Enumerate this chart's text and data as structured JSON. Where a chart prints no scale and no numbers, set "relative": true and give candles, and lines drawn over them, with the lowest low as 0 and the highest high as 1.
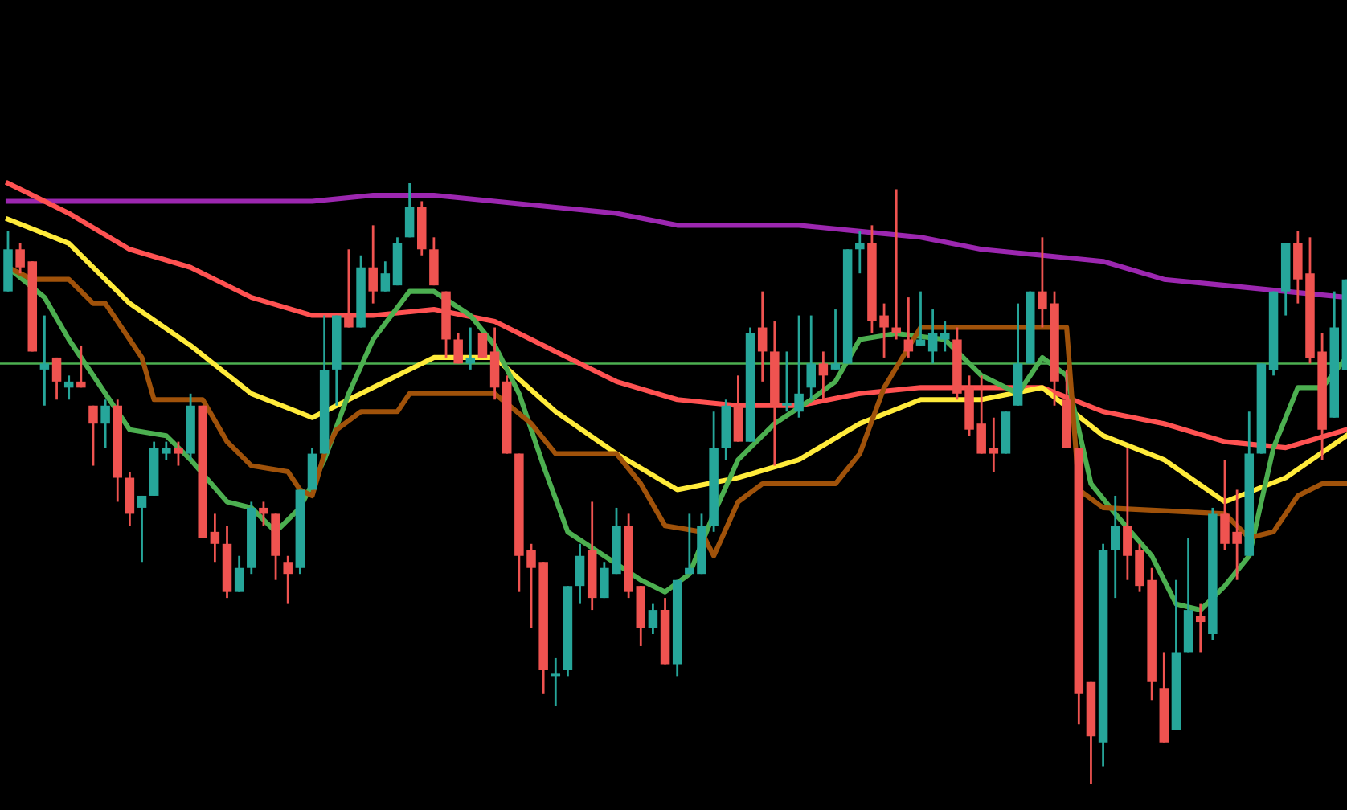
{
  "chart_data": {
    "type": "candlestick",
    "relative": true,
    "colors": [
      "#26a69a",
      "#ef5350",
      "#ef5350",
      "#26a69a",
      "#ef5350",
      "#26a69a",
      "#ef5350",
      "#ef5350",
      "#26a69a",
      "#ef5350",
      "#ef5350",
      "#26a69a",
      "#26a69a",
      "#26a69a",
      "#ef5350",
      "#26a69a",
      "#ef5350",
      "#ef5350",
      "#ef5350",
      "#26a69a",
      "#26a69a",
      "#ef5350",
      "#ef5350",
      "#ef5350",
      "#26a69a",
      "#26a69a",
      "#26a69a",
      "#26a69a",
      "#ef5350",
      "#26a69a",
      "#ef5350",
      "#26a69a",
      "#26a69a",
      "#26a69a",
      "#ef5350",
      "#ef5350",
      "#ef5350",
      "#ef5350",
      "#26a69a",
      "#ef5350",
      "#ef5350",
      "#ef5350",
      "#ef5350",
      "#ef5350",
      "#ef5350",
      "#26a69a",
      "#26a69a",
      "#26a69a",
      "#ef5350",
      "#26a69a",
      "#26a69a",
      "#ef5350",
      "#ef5350",
      "#26a69a",
      "#ef5350",
      "#26a69a",
      "#26a69a",
      "#26a69a",
      "#26a69a",
      "#26a69a",
      "#ef5350",
      "#26a69a",
      "#ef5350",
      "#ef5350",
      "#26a69a",
      "#26a69a",
      "#26a69a",
      "#ef5350",
      "#26a69a",
      "#26a69a",
      "#26a69a",
      "#ef5350",
      "#ef5350",
      "#ef5350",
      "#ef5350",
      "#26a69a",
      "#26a69a",
      "#26a69a",
      "#ef5350",
      "#ef5350",
      "#ef5350",
      "#ef5350",
      "#26a69a",
      "#26a69a",
      "#26a69a",
      "#ef5350",
      "#ef5350",
      "#ef5350",
      "#ef5350",
      "#ef5350",
      "#26a69a",
      "#26a69a",
      "#ef5350",
      "#ef5350",
      "#ef5350",
      "#ef5350",
      "#26a69a",
      "#26a69a",
      "#ef5350",
      "#26a69a",
      "#ef5350",
      "#ef5350",
      "#26a69a",
      "#26a69a",
      "#26a69a",
      "#26a69a",
      "#ef5350",
      "#ef5350",
      "#ef5350",
      "#26a69a",
      "#26a69a"
    ],
    "categories": [
      null,
      null,
      null,
      null,
      null,
      null,
      null,
      null,
      null,
      null,
      null,
      null,
      null,
      null,
      null,
      null,
      null,
      null,
      null,
      null,
      null,
      null,
      null,
      null,
      null,
      null,
      null,
      null,
      null,
      null,
      null,
      null,
      null,
      null,
      null,
      null,
      null,
      null,
      null,
      null,
      null,
      null,
      null,
      null,
      null,
      null,
      null,
      null,
      null,
      null,
      null,
      null,
      null,
      null,
      null,
      null,
      null,
      null,
      null,
      null,
      null,
      null,
      null,
      null,
      null,
      null,
      null,
      null,
      null,
      null,
      null,
      null,
      null,
      null,
      null,
      null,
      null,
      null,
      null,
      null,
      null,
      null,
      null,
      null,
      null,
      null,
      null,
      null,
      null,
      null,
      null,
      null,
      null,
      null,
      null,
      null,
      null,
      null,
      null,
      null,
      null,
      null,
      null,
      null,
      null,
      null,
      null,
      null,
      null,
      null,
      null
    ],
    "ohlc": [
      [
        0.82,
        0.92,
        0.82,
        0.89
      ],
      [
        0.89,
        0.9,
        0.85,
        0.86
      ],
      [
        0.87,
        0.87,
        0.72,
        0.72
      ],
      [
        0.69,
        0.78,
        0.63,
        0.7
      ],
      [
        0.71,
        0.71,
        0.64,
        0.67
      ],
      [
        0.66,
        0.68,
        0.64,
        0.67
      ],
      [
        0.67,
        0.73,
        0.66,
        0.66
      ],
      [
        0.63,
        0.63,
        0.53,
        0.6
      ],
      [
        0.6,
        0.64,
        0.56,
        0.63
      ],
      [
        0.63,
        0.64,
        0.47,
        0.51
      ],
      [
        0.51,
        0.52,
        0.43,
        0.45
      ],
      [
        0.46,
        0.48,
        0.37,
        0.48
      ],
      [
        0.48,
        0.57,
        0.48,
        0.56
      ],
      [
        0.55,
        0.57,
        0.54,
        0.56
      ],
      [
        0.56,
        0.57,
        0.53,
        0.55
      ],
      [
        0.55,
        0.65,
        0.54,
        0.63
      ],
      [
        0.63,
        0.63,
        0.41,
        0.41
      ],
      [
        0.42,
        0.45,
        0.37,
        0.4
      ],
      [
        0.4,
        0.43,
        0.31,
        0.32
      ],
      [
        0.32,
        0.38,
        0.32,
        0.36
      ],
      [
        0.36,
        0.47,
        0.35,
        0.46
      ],
      [
        0.46,
        0.47,
        0.43,
        0.45
      ],
      [
        0.45,
        0.45,
        0.34,
        0.38
      ],
      [
        0.37,
        0.38,
        0.3,
        0.35
      ],
      [
        0.36,
        0.49,
        0.35,
        0.49
      ],
      [
        0.49,
        0.56,
        0.49,
        0.55
      ],
      [
        0.55,
        0.78,
        0.55,
        0.69
      ],
      [
        0.69,
        0.78,
        0.63,
        0.78
      ],
      [
        0.78,
        0.89,
        0.76,
        0.76
      ],
      [
        0.76,
        0.88,
        0.76,
        0.86
      ],
      [
        0.86,
        0.93,
        0.8,
        0.82
      ],
      [
        0.82,
        0.87,
        0.82,
        0.85
      ],
      [
        0.83,
        0.91,
        0.83,
        0.9
      ],
      [
        0.91,
        1.0,
        0.91,
        0.96
      ],
      [
        0.96,
        0.97,
        0.88,
        0.89
      ],
      [
        0.89,
        0.91,
        0.83,
        0.83
      ],
      [
        0.82,
        0.82,
        0.71,
        0.74
      ],
      [
        0.74,
        0.75,
        0.7,
        0.7
      ],
      [
        0.7,
        0.76,
        0.69,
        0.71
      ],
      [
        0.75,
        0.75,
        0.71,
        0.71
      ],
      [
        0.72,
        0.76,
        0.64,
        0.66
      ],
      [
        0.67,
        0.68,
        0.55,
        0.55
      ],
      [
        0.55,
        0.55,
        0.32,
        0.38
      ],
      [
        0.39,
        0.4,
        0.26,
        0.36
      ],
      [
        0.37,
        0.37,
        0.15,
        0.19
      ],
      [
        0.18,
        0.21,
        0.13,
        0.18
      ],
      [
        0.19,
        0.33,
        0.18,
        0.33
      ],
      [
        0.33,
        0.4,
        0.3,
        0.38
      ],
      [
        0.39,
        0.47,
        0.29,
        0.31
      ],
      [
        0.31,
        0.37,
        0.31,
        0.36
      ],
      [
        0.35,
        0.46,
        0.35,
        0.43
      ],
      [
        0.43,
        0.45,
        0.31,
        0.32
      ],
      [
        0.33,
        0.33,
        0.23,
        0.26
      ],
      [
        0.26,
        0.3,
        0.25,
        0.29
      ],
      [
        0.29,
        0.31,
        0.2,
        0.2
      ],
      [
        0.2,
        0.34,
        0.18,
        0.34
      ],
      [
        0.35,
        0.45,
        0.35,
        0.36
      ],
      [
        0.35,
        0.45,
        0.35,
        0.43
      ],
      [
        0.43,
        0.62,
        0.42,
        0.56
      ],
      [
        0.56,
        0.64,
        0.54,
        0.63
      ],
      [
        0.63,
        0.68,
        0.57,
        0.57
      ],
      [
        0.57,
        0.76,
        0.57,
        0.75
      ],
      [
        0.76,
        0.82,
        0.67,
        0.72
      ],
      [
        0.72,
        0.77,
        0.53,
        0.63
      ],
      [
        0.63,
        0.72,
        0.62,
        0.63
      ],
      [
        0.62,
        0.78,
        0.61,
        0.65
      ],
      [
        0.66,
        0.78,
        0.64,
        0.7
      ],
      [
        0.7,
        0.72,
        0.64,
        0.68
      ],
      [
        0.69,
        0.79,
        0.69,
        0.7
      ],
      [
        0.7,
        0.89,
        0.7,
        0.89
      ],
      [
        0.89,
        0.92,
        0.85,
        0.9
      ],
      [
        0.9,
        0.93,
        0.75,
        0.77
      ],
      [
        0.78,
        0.8,
        0.71,
        0.76
      ],
      [
        0.76,
        0.99,
        0.74,
        0.75
      ],
      [
        0.74,
        0.81,
        0.71,
        0.72
      ],
      [
        0.73,
        0.82,
        0.73,
        0.74
      ],
      [
        0.72,
        0.79,
        0.7,
        0.75
      ],
      [
        0.74,
        0.77,
        0.72,
        0.75
      ],
      [
        0.74,
        0.76,
        0.64,
        0.65
      ],
      [
        0.66,
        0.68,
        0.58,
        0.59
      ],
      [
        0.6,
        0.68,
        0.55,
        0.55
      ],
      [
        0.56,
        0.61,
        0.52,
        0.55
      ],
      [
        0.55,
        0.62,
        0.55,
        0.62
      ],
      [
        0.63,
        0.8,
        0.63,
        0.7
      ],
      [
        0.7,
        0.82,
        0.7,
        0.82
      ],
      [
        0.82,
        0.91,
        0.76,
        0.79
      ],
      [
        0.8,
        0.82,
        0.63,
        0.67
      ],
      [
        0.64,
        0.69,
        0.56,
        0.56
      ],
      [
        0.56,
        0.56,
        0.1,
        0.15
      ],
      [
        0.17,
        0.17,
        0.0,
        0.08
      ],
      [
        0.07,
        0.4,
        0.03,
        0.39
      ],
      [
        0.39,
        0.48,
        0.31,
        0.43
      ],
      [
        0.43,
        0.56,
        0.34,
        0.38
      ],
      [
        0.39,
        0.4,
        0.32,
        0.33
      ],
      [
        0.34,
        0.36,
        0.14,
        0.17
      ],
      [
        0.16,
        0.22,
        0.07,
        0.07
      ],
      [
        0.09,
        0.34,
        0.09,
        0.22
      ],
      [
        0.22,
        0.41,
        0.22,
        0.29
      ],
      [
        0.28,
        0.3,
        0.22,
        0.27
      ],
      [
        0.25,
        0.46,
        0.24,
        0.45
      ],
      [
        0.45,
        0.54,
        0.39,
        0.4
      ],
      [
        0.42,
        0.49,
        0.34,
        0.4
      ],
      [
        0.38,
        0.62,
        0.38,
        0.55
      ],
      [
        0.55,
        0.7,
        0.55,
        0.7
      ],
      [
        0.69,
        0.82,
        0.68,
        0.82
      ],
      [
        0.82,
        0.9,
        0.78,
        0.9
      ],
      [
        0.9,
        0.92,
        0.8,
        0.84
      ],
      [
        0.85,
        0.91,
        0.7,
        0.71
      ],
      [
        0.72,
        0.75,
        0.54,
        0.59
      ],
      [
        0.61,
        0.82,
        0.61,
        0.76
      ],
      [
        0.69,
        0.84,
        0.69,
        0.84
      ]
    ],
    "series": [
      {
        "type": "line",
        "color": "#9c27b0",
        "values": [
          0.97,
          null,
          null,
          null,
          null,
          0.97,
          null,
          null,
          null,
          null,
          0.97,
          null,
          null,
          null,
          null,
          0.97,
          null,
          null,
          null,
          null,
          0.97,
          null,
          null,
          null,
          null,
          0.97,
          null,
          null,
          null,
          null,
          0.98,
          null,
          null,
          null,
          null,
          0.98,
          null,
          null,
          null,
          null,
          0.97,
          null,
          null,
          null,
          null,
          0.96,
          null,
          null,
          null,
          null,
          0.95,
          null,
          null,
          null,
          null,
          0.93,
          null,
          null,
          null,
          null,
          0.93,
          null,
          null,
          null,
          null,
          0.93,
          null,
          null,
          null,
          null,
          0.92,
          null,
          null,
          null,
          null,
          0.91,
          null,
          null,
          null,
          null,
          0.89,
          null,
          null,
          null,
          null,
          0.88,
          null,
          null,
          null,
          null,
          0.87,
          null,
          null,
          null,
          null,
          0.84,
          null,
          null,
          null,
          null,
          0.83,
          null,
          null,
          null,
          null,
          0.82,
          null,
          null,
          null,
          null,
          0.81
        ]
      },
      {
        "type": "line",
        "color": "#ff5252",
        "values": [
          1.0,
          null,
          null,
          null,
          null,
          0.95,
          null,
          null,
          null,
          null,
          0.89,
          null,
          null,
          null,
          null,
          0.86,
          null,
          null,
          null,
          null,
          0.81,
          null,
          null,
          null,
          null,
          0.78,
          null,
          null,
          null,
          null,
          0.78,
          null,
          null,
          null,
          null,
          0.79,
          null,
          null,
          null,
          null,
          0.77,
          null,
          null,
          null,
          null,
          0.72,
          null,
          null,
          null,
          null,
          0.67,
          null,
          null,
          null,
          null,
          0.64,
          null,
          null,
          null,
          null,
          0.63,
          null,
          null,
          null,
          null,
          0.63,
          null,
          null,
          null,
          null,
          0.65,
          null,
          null,
          null,
          null,
          0.66,
          null,
          null,
          null,
          null,
          0.66,
          null,
          null,
          null,
          null,
          0.66,
          null,
          null,
          null,
          null,
          0.62,
          null,
          null,
          null,
          null,
          0.6,
          null,
          null,
          null,
          null,
          0.57,
          null,
          null,
          null,
          null,
          0.56,
          null,
          null,
          null,
          null,
          0.59
        ]
      },
      {
        "type": "line",
        "color": "#ffeb3b",
        "values": [
          0.94,
          null,
          null,
          null,
          null,
          0.9,
          null,
          null,
          null,
          null,
          0.8,
          null,
          null,
          null,
          null,
          0.73,
          null,
          null,
          null,
          null,
          0.65,
          null,
          null,
          null,
          null,
          0.61,
          null,
          null,
          null,
          null,
          0.66,
          null,
          null,
          null,
          null,
          0.71,
          null,
          null,
          null,
          null,
          0.71,
          null,
          null,
          null,
          null,
          0.62,
          null,
          null,
          null,
          null,
          0.55,
          null,
          null,
          null,
          null,
          0.49,
          null,
          null,
          null,
          null,
          0.51,
          null,
          null,
          null,
          null,
          0.54,
          null,
          null,
          null,
          null,
          0.6,
          null,
          null,
          null,
          null,
          0.64,
          null,
          null,
          null,
          null,
          0.64,
          null,
          null,
          null,
          null,
          0.66,
          null,
          null,
          null,
          null,
          0.58,
          null,
          null,
          null,
          null,
          0.54,
          null,
          null,
          null,
          null,
          0.47,
          null,
          null,
          null,
          null,
          0.51,
          null,
          null,
          null,
          null,
          0.58
        ]
      },
      {
        "type": "line",
        "color": "#4caf50",
        "values": [
          0.86,
          null,
          null,
          0.81,
          null,
          0.74,
          null,
          null,
          0.65,
          null,
          0.59,
          null,
          null,
          0.58,
          null,
          0.54,
          null,
          null,
          0.47,
          null,
          0.46,
          null,
          0.42,
          null,
          0.46,
          null,
          0.54,
          null,
          0.65,
          null,
          0.74,
          null,
          null,
          0.82,
          null,
          0.82,
          null,
          null,
          0.78,
          null,
          0.73,
          null,
          0.65,
          null,
          0.53,
          null,
          0.42,
          null,
          null,
          0.38,
          null,
          null,
          0.34,
          null,
          0.32,
          null,
          0.35,
          null,
          0.45,
          null,
          0.54,
          null,
          null,
          0.6,
          null,
          null,
          0.64,
          null,
          0.67,
          null,
          0.74,
          null,
          null,
          0.75,
          null,
          null,
          null,
          0.74,
          null,
          null,
          0.68,
          null,
          null,
          0.65,
          null,
          0.71,
          null,
          0.68,
          null,
          0.5,
          null,
          0.45,
          null,
          null,
          0.38,
          null,
          0.3,
          null,
          0.29,
          null,
          0.33,
          null,
          0.38,
          null,
          0.56,
          null,
          0.66,
          null,
          0.66,
          null,
          0.71
        ]
      },
      {
        "type": "line",
        "color": "#a0520a",
        "values": [
          0.86,
          null,
          0.84,
          null,
          null,
          0.84,
          null,
          0.8,
          0.8,
          null,
          null,
          0.71,
          0.64,
          null,
          null,
          null,
          0.64,
          null,
          0.57,
          null,
          0.53,
          null,
          null,
          0.52,
          0.49,
          0.48,
          0.55,
          0.59,
          null,
          0.62,
          null,
          null,
          0.62,
          0.65,
          null,
          null,
          null,
          null,
          null,
          null,
          0.65,
          null,
          null,
          0.6,
          null,
          0.55,
          null,
          null,
          null,
          null,
          0.55,
          null,
          0.5,
          null,
          0.43,
          null,
          null,
          0.42,
          0.38,
          null,
          0.47,
          null,
          0.5,
          null,
          null,
          null,
          null,
          null,
          0.5,
          null,
          0.55,
          null,
          0.66,
          null,
          null,
          0.76,
          null,
          null,
          null,
          null,
          null,
          null,
          null,
          null,
          null,
          null,
          null,
          0.76,
          0.49,
          null,
          0.46,
          null,
          null,
          null,
          null,
          null,
          null,
          null,
          null,
          null,
          0.45,
          null,
          0.41,
          null,
          0.42,
          null,
          0.48,
          null,
          0.5,
          null,
          0.5
        ]
      }
    ],
    "ref_lines": [
      {
        "axis": "y",
        "value": 0.7,
        "color": "#4caf50"
      }
    ]
  }
}
